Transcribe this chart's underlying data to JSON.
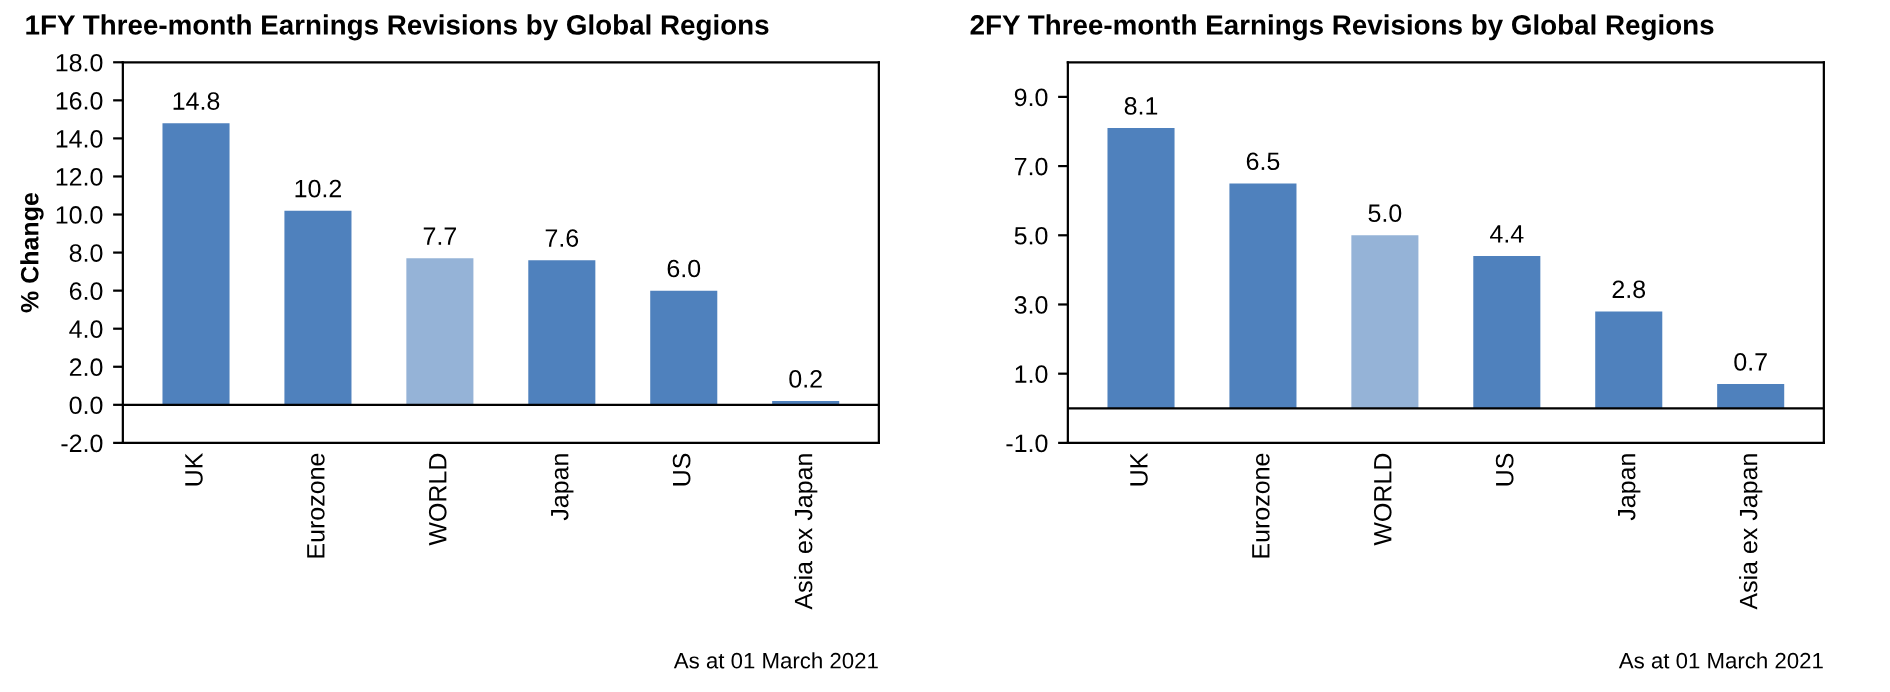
{
  "chart_data": [
    {
      "type": "bar",
      "title": "1FY Three-month Earnings Revisions by Global Regions",
      "ylabel": "% Change",
      "categories": [
        "UK",
        "Eurozone",
        "WORLD",
        "Japan",
        "US",
        "Asia ex Japan"
      ],
      "values": [
        14.8,
        10.2,
        7.7,
        7.6,
        6.0,
        0.2
      ],
      "colors": [
        "#4f81bd",
        "#4f81bd",
        "#95b3d7",
        "#4f81bd",
        "#4f81bd",
        "#4f81bd"
      ],
      "value_labels": [
        "14.8",
        "10.2",
        "7.7",
        "7.6",
        "6.0",
        "0.2"
      ],
      "ylim": [
        -2,
        18
      ],
      "yticks": [
        {
          "value": -2,
          "label": "-2.0"
        },
        {
          "value": 0,
          "label": "0.0"
        },
        {
          "value": 2,
          "label": "2.0"
        },
        {
          "value": 4,
          "label": "4.0"
        },
        {
          "value": 6,
          "label": "6.0"
        },
        {
          "value": 8,
          "label": "8.0"
        },
        {
          "value": 10,
          "label": "10.0"
        },
        {
          "value": 12,
          "label": "12.0"
        },
        {
          "value": 14,
          "label": "14.0"
        },
        {
          "value": 16,
          "label": "16.0"
        },
        {
          "value": 18,
          "label": "18.0"
        }
      ],
      "grid": false,
      "legend": false,
      "ref_lines": [
        {
          "axis": "y",
          "value": 0,
          "color": "#000000"
        }
      ],
      "annotations": [
        "As at 01 March 2021"
      ]
    },
    {
      "type": "bar",
      "title": "2FY Three-month Earnings Revisions by Global Regions",
      "categories": [
        "UK",
        "Eurozone",
        "WORLD",
        "US",
        "Japan",
        "Asia ex Japan"
      ],
      "values": [
        8.1,
        6.5,
        5.0,
        4.4,
        2.8,
        0.7
      ],
      "colors": [
        "#4f81bd",
        "#4f81bd",
        "#95b3d7",
        "#4f81bd",
        "#4f81bd",
        "#4f81bd"
      ],
      "value_labels": [
        "8.1",
        "6.5",
        "5.0",
        "4.4",
        "2.8",
        "0.7"
      ],
      "ylim": [
        -1,
        10
      ],
      "yticks": [
        {
          "value": -1,
          "label": "-1.0"
        },
        {
          "value": 1,
          "label": "1.0"
        },
        {
          "value": 3,
          "label": "3.0"
        },
        {
          "value": 5,
          "label": "5.0"
        },
        {
          "value": 7,
          "label": "7.0"
        },
        {
          "value": 9,
          "label": "9.0"
        }
      ],
      "grid": false,
      "legend": false,
      "ref_lines": [
        {
          "axis": "y",
          "value": 0,
          "color": "#000000"
        }
      ],
      "annotations": [
        "As at 01 March 2021"
      ]
    }
  ]
}
